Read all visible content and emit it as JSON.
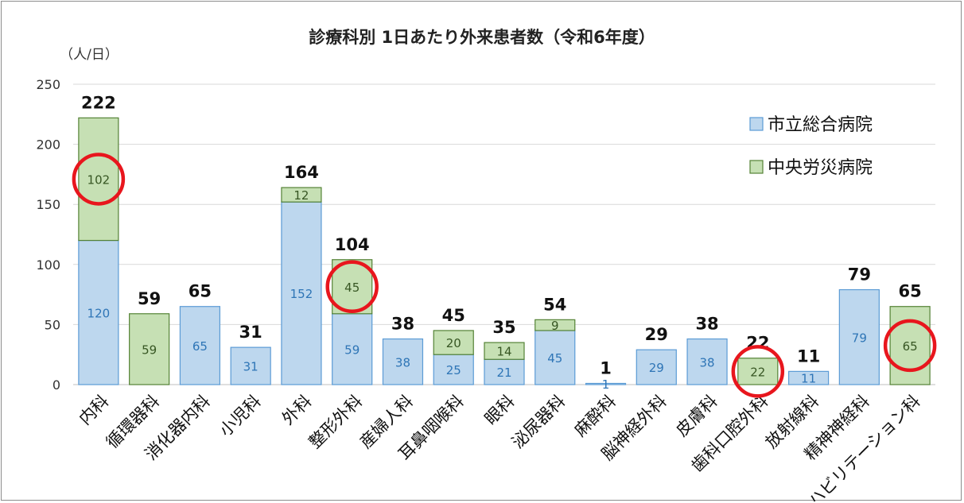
{
  "chart_data": {
    "type": "bar",
    "stacked": true,
    "title": "診療科別 1日あたり外来患者数（令和6年度）",
    "ylabel": "（人/日）",
    "ylim": [
      0,
      250
    ],
    "yticks": [
      0,
      50,
      100,
      150,
      200,
      250
    ],
    "grid": true,
    "legend_position": "top-right",
    "categories": [
      "内科",
      "循環器科",
      "消化器内科",
      "小児科",
      "外科",
      "整形外科",
      "産婦人科",
      "耳鼻咽喉科",
      "眼科",
      "泌尿器科",
      "麻酔科",
      "脳神経外科",
      "皮膚科",
      "歯科口腔外科",
      "放射線科",
      "精神神経科",
      "リハビリテーション科"
    ],
    "series": [
      {
        "name": "市立総合病院",
        "color": "#bdd7ee",
        "border": "#5b9bd5",
        "label_color": "#2e75b6",
        "values": [
          120,
          0,
          65,
          31,
          152,
          59,
          38,
          25,
          21,
          45,
          1,
          29,
          38,
          0,
          11,
          79,
          0
        ]
      },
      {
        "name": "中央労災病院",
        "color": "#c6e0b4",
        "border": "#548235",
        "label_color": "#375623",
        "values": [
          102,
          59,
          0,
          0,
          12,
          45,
          0,
          20,
          14,
          9,
          0,
          0,
          0,
          22,
          0,
          0,
          65
        ]
      }
    ],
    "totals": [
      222,
      59,
      65,
      31,
      164,
      104,
      38,
      45,
      35,
      54,
      1,
      29,
      38,
      22,
      11,
      79,
      65
    ],
    "highlighted": [
      0,
      5,
      13,
      16
    ],
    "highlight_color": "#e8161d"
  }
}
